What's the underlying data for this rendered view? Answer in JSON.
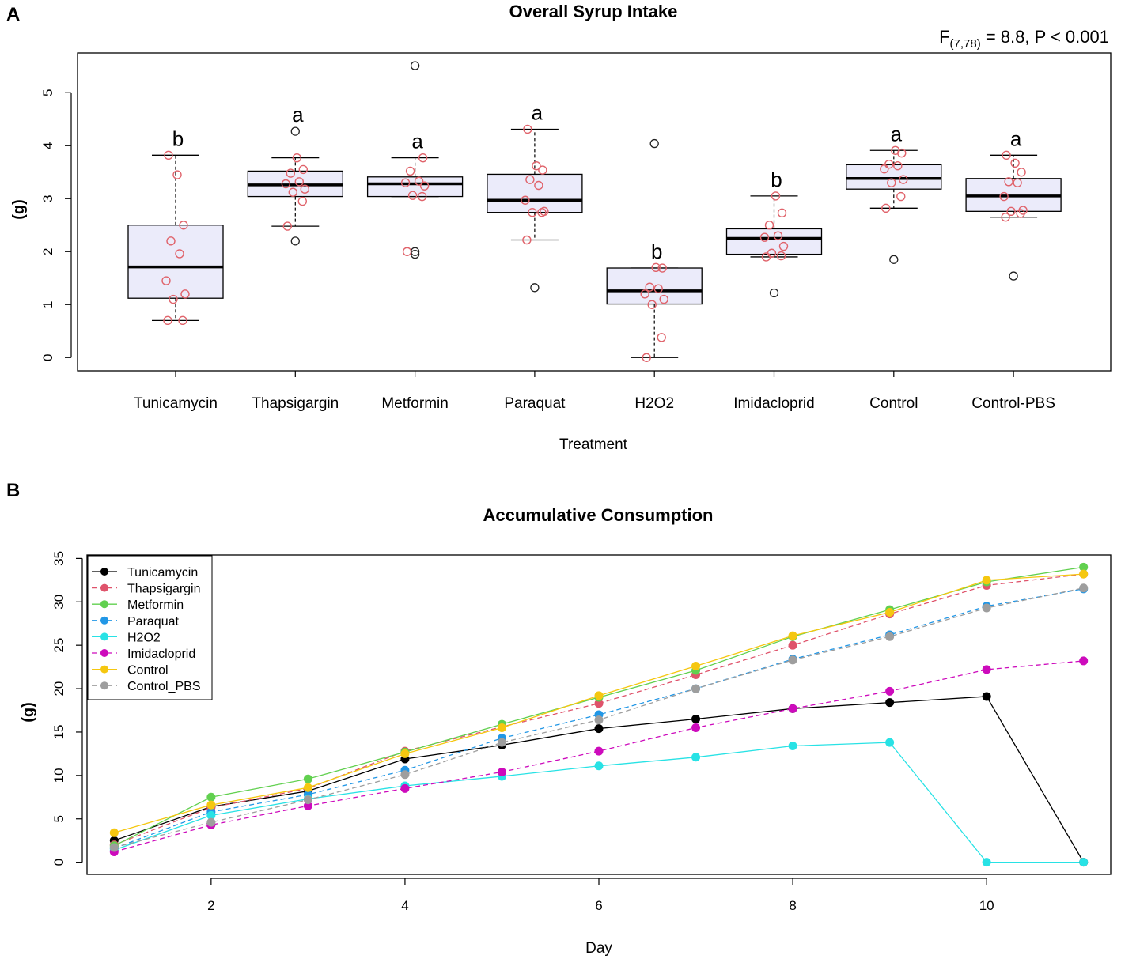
{
  "panels": {
    "a": {
      "label": "A"
    },
    "b": {
      "label": "B"
    }
  },
  "chart_data": [
    {
      "type": "box",
      "title": "Overall Syrup Intake",
      "stat": {
        "prefix": "F",
        "sub": "(7,78)",
        "text": " = 8.8, P < 0.001"
      },
      "xlabel": "Treatment",
      "ylabel": "(g)",
      "ylim": [
        -0.25,
        5.75
      ],
      "yticks": [
        0,
        1,
        2,
        3,
        4,
        5
      ],
      "box_fill": "#ebebfa",
      "point_color": "#e0636b",
      "outlier_color": "#222222",
      "groups": [
        {
          "name": "Tunicamycin",
          "letter": "b",
          "q1": 1.12,
          "median": 1.71,
          "q3": 2.5,
          "whisker_low": 0.7,
          "whisker_high": 3.82,
          "outliers": [],
          "points": [
            0.7,
            0.7,
            1.1,
            1.2,
            1.45,
            1.96,
            2.2,
            2.5,
            3.45,
            3.82
          ]
        },
        {
          "name": "Thapsigargin",
          "letter": "a",
          "q1": 3.04,
          "median": 3.26,
          "q3": 3.52,
          "whisker_low": 2.48,
          "whisker_high": 3.77,
          "outliers": [
            2.2,
            4.27
          ],
          "points": [
            2.48,
            2.95,
            3.12,
            3.18,
            3.28,
            3.32,
            3.48,
            3.55,
            3.77
          ]
        },
        {
          "name": "Metformin",
          "letter": "a",
          "q1": 3.04,
          "median": 3.28,
          "q3": 3.41,
          "whisker_low": 3.04,
          "whisker_high": 3.77,
          "outliers": [
            1.95,
            2.0,
            5.51
          ],
          "points": [
            2.0,
            3.04,
            3.06,
            3.24,
            3.3,
            3.33,
            3.52,
            3.77
          ]
        },
        {
          "name": "Paraquat",
          "letter": "a",
          "q1": 2.74,
          "median": 2.97,
          "q3": 3.46,
          "whisker_low": 2.22,
          "whisker_high": 4.31,
          "outliers": [
            1.32
          ],
          "points": [
            2.22,
            2.74,
            2.74,
            2.76,
            2.97,
            3.25,
            3.36,
            3.54,
            3.62,
            4.31
          ]
        },
        {
          "name": "H2O2",
          "letter": "b",
          "q1": 1.01,
          "median": 1.26,
          "q3": 1.69,
          "whisker_low": 0.0,
          "whisker_high": 1.69,
          "outliers": [
            4.04
          ],
          "points": [
            0.0,
            0.38,
            1.0,
            1.1,
            1.2,
            1.3,
            1.33,
            1.69,
            1.7
          ]
        },
        {
          "name": "Imidacloprid",
          "letter": "b",
          "q1": 1.95,
          "median": 2.25,
          "q3": 2.43,
          "whisker_low": 1.9,
          "whisker_high": 3.05,
          "outliers": [
            1.22
          ],
          "points": [
            1.9,
            1.92,
            1.97,
            2.1,
            2.27,
            2.3,
            2.5,
            2.73,
            3.05
          ]
        },
        {
          "name": "Control",
          "letter": "a",
          "q1": 3.18,
          "median": 3.38,
          "q3": 3.64,
          "whisker_low": 2.82,
          "whisker_high": 3.91,
          "outliers": [
            1.85
          ],
          "points": [
            2.82,
            3.04,
            3.3,
            3.36,
            3.56,
            3.62,
            3.65,
            3.86,
            3.91
          ]
        },
        {
          "name": "Control-PBS",
          "letter": "a",
          "q1": 2.76,
          "median": 3.05,
          "q3": 3.38,
          "whisker_low": 2.65,
          "whisker_high": 3.82,
          "outliers": [
            1.54
          ],
          "points": [
            2.65,
            2.72,
            2.76,
            2.78,
            3.04,
            3.3,
            3.32,
            3.5,
            3.67,
            3.82
          ]
        }
      ]
    },
    {
      "type": "line",
      "title": "Accumulative Consumption",
      "xlabel": "Day",
      "ylabel": "(g)",
      "xlim": [
        0.72,
        11.28
      ],
      "ylim": [
        -1.4,
        35.4
      ],
      "xticks": [
        2,
        4,
        6,
        8,
        10
      ],
      "yticks": [
        0,
        5,
        10,
        15,
        20,
        25,
        30,
        35
      ],
      "x": [
        1,
        2,
        3,
        4,
        5,
        6,
        7,
        8,
        9,
        10,
        11
      ],
      "legend_position": "top-left",
      "series": [
        {
          "name": "Tunicamycin",
          "color": "#000000",
          "dashed": false,
          "values": [
            2.5,
            6.4,
            8.2,
            11.9,
            13.5,
            15.4,
            16.5,
            17.7,
            18.4,
            19.1,
            0.0
          ]
        },
        {
          "name": "Thapsigargin",
          "color": "#df536b",
          "dashed": true,
          "values": [
            2.0,
            6.3,
            8.5,
            12.8,
            15.6,
            18.3,
            21.6,
            25.0,
            28.6,
            31.9,
            33.2
          ]
        },
        {
          "name": "Metformin",
          "color": "#61d04f",
          "dashed": false,
          "values": [
            1.9,
            7.5,
            9.6,
            12.7,
            15.9,
            19.0,
            22.1,
            26.0,
            29.1,
            32.3,
            34.0
          ]
        },
        {
          "name": "Paraquat",
          "color": "#2297e6",
          "dashed": true,
          "values": [
            1.6,
            5.8,
            7.8,
            10.6,
            14.3,
            17.0,
            20.0,
            23.4,
            26.2,
            29.5,
            31.5
          ]
        },
        {
          "name": "H2O2",
          "color": "#28e2e5",
          "dashed": false,
          "values": [
            1.4,
            5.4,
            7.3,
            8.8,
            9.9,
            11.1,
            12.1,
            13.4,
            13.8,
            0.0,
            0.0
          ]
        },
        {
          "name": "Imidacloprid",
          "color": "#cd0bbc",
          "dashed": true,
          "values": [
            1.2,
            4.3,
            6.5,
            8.5,
            10.4,
            12.8,
            15.5,
            17.7,
            19.7,
            22.2,
            23.2
          ]
        },
        {
          "name": "Control",
          "color": "#f5c710",
          "dashed": false,
          "values": [
            3.4,
            6.6,
            8.6,
            12.5,
            15.5,
            19.2,
            22.6,
            26.1,
            28.8,
            32.5,
            33.2
          ]
        },
        {
          "name": "Control_PBS",
          "color": "#9e9e9e",
          "dashed": true,
          "values": [
            1.7,
            4.6,
            7.2,
            10.1,
            13.8,
            16.4,
            20.0,
            23.3,
            26.0,
            29.3,
            31.6
          ]
        }
      ]
    }
  ]
}
